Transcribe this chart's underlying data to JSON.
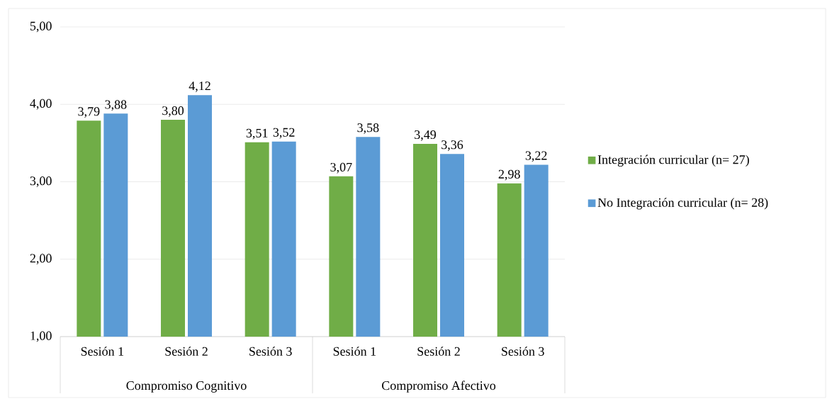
{
  "chart_data": {
    "type": "bar",
    "categories": [
      "Sesión 1",
      "Sesión 2",
      "Sesión 3",
      "Sesión 1",
      "Sesión 2",
      "Sesión 3"
    ],
    "series": [
      {
        "name": "Integración curricular (n= 27)",
        "color": "#70ad47",
        "values": [
          3.79,
          3.8,
          3.51,
          3.07,
          3.49,
          2.98
        ],
        "value_labels": [
          "3,79",
          "3,80",
          "3,51",
          "3,07",
          "3,49",
          "2,98"
        ]
      },
      {
        "name": "No Integración curricular (n= 28)",
        "color": "#5b9bd5",
        "values": [
          3.88,
          4.12,
          3.52,
          3.58,
          3.36,
          3.22
        ],
        "value_labels": [
          "3,88",
          "4,12",
          "3,52",
          "3,58",
          "3,36",
          "3,22"
        ]
      }
    ],
    "ylim": [
      1,
      5
    ],
    "yticks": [
      {
        "value": 1,
        "label": "1,00"
      },
      {
        "value": 2,
        "label": "2,00"
      },
      {
        "value": 3,
        "label": "3,00"
      },
      {
        "value": 4,
        "label": "4,00"
      },
      {
        "value": 5,
        "label": "5,00"
      }
    ],
    "grid": "y",
    "legend": "right",
    "annotations": [
      "Compromiso Cognitivo",
      "Compromiso Afectivo"
    ]
  }
}
